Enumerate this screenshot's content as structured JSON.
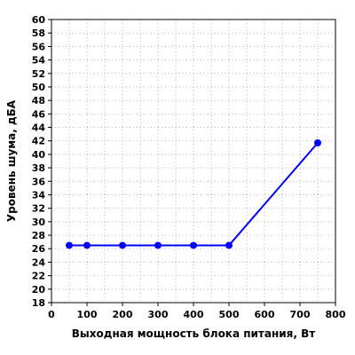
{
  "chart_data": {
    "type": "line",
    "title": "",
    "xlabel": "Выходная мощность блока питания, Вт",
    "ylabel": "Уровень шума, дБА",
    "xlim": [
      0,
      800
    ],
    "ylim": [
      18,
      60
    ],
    "x_ticks": [
      "0",
      "100",
      "200",
      "300",
      "400",
      "500",
      "600",
      "700",
      "800"
    ],
    "y_ticks": [
      "18",
      "20",
      "22",
      "24",
      "26",
      "28",
      "30",
      "32",
      "34",
      "36",
      "38",
      "40",
      "42",
      "44",
      "46",
      "48",
      "50",
      "52",
      "54",
      "56",
      "58",
      "60"
    ],
    "grid": true,
    "series": [
      {
        "color": "#0000ff",
        "x": [
          50,
          100,
          200,
          300,
          400,
          500,
          750
        ],
        "y": [
          26.5,
          26.5,
          26.5,
          26.5,
          26.5,
          26.5,
          41.7
        ]
      }
    ]
  }
}
